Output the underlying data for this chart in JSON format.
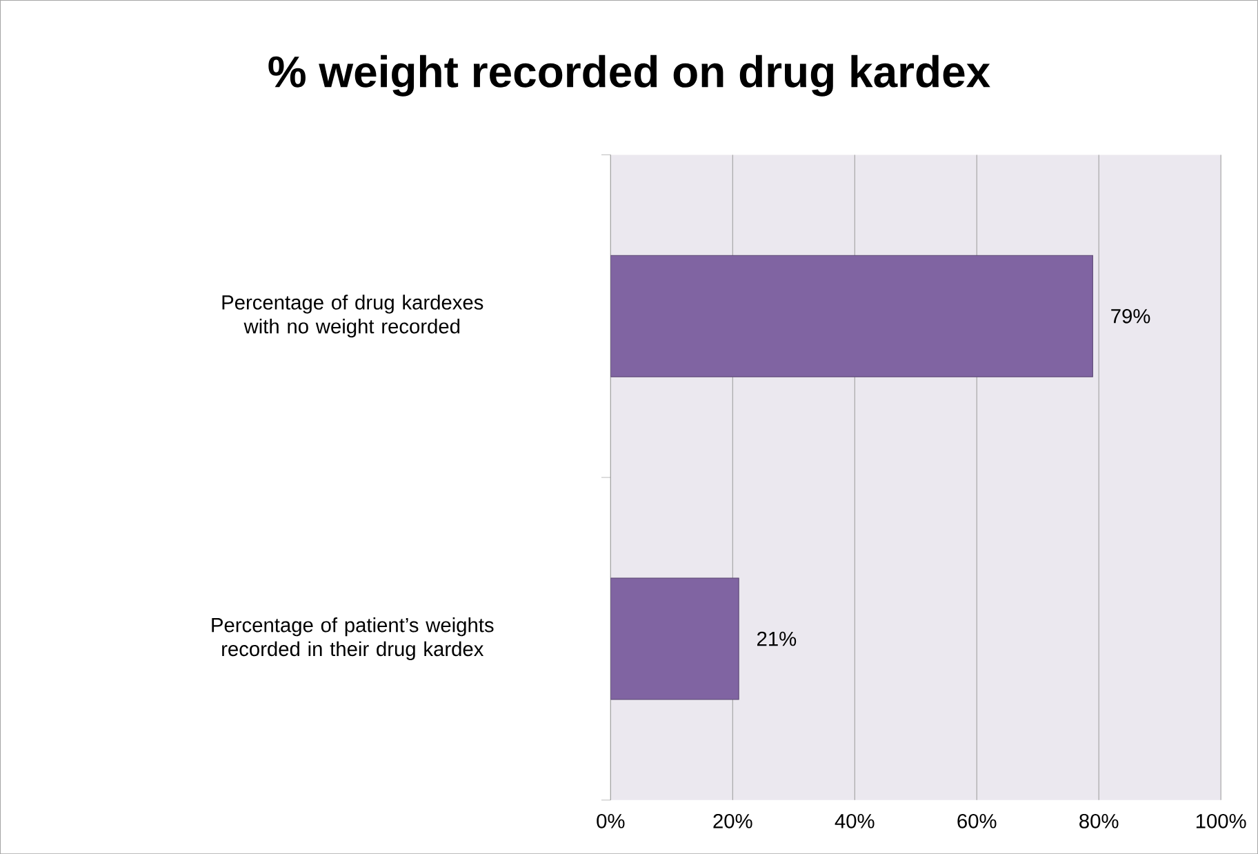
{
  "chart_data": {
    "type": "bar",
    "orientation": "horizontal",
    "title": "% weight recorded on drug kardex",
    "categories": [
      "Percentage of drug kardexes with no weight recorded",
      "Percentage of patient’s weights recorded in their drug kardex"
    ],
    "values": [
      79,
      21
    ],
    "value_labels": [
      "79%",
      "21%"
    ],
    "color": "#8064a2",
    "xlim": [
      0,
      100
    ],
    "xticks": [
      {
        "value": 0,
        "label": "0%"
      },
      {
        "value": 20,
        "label": "20%"
      },
      {
        "value": 40,
        "label": "40%"
      },
      {
        "value": 60,
        "label": "60%"
      },
      {
        "value": 80,
        "label": "80%"
      },
      {
        "value": 100,
        "label": "100%"
      }
    ],
    "grid": "x"
  }
}
